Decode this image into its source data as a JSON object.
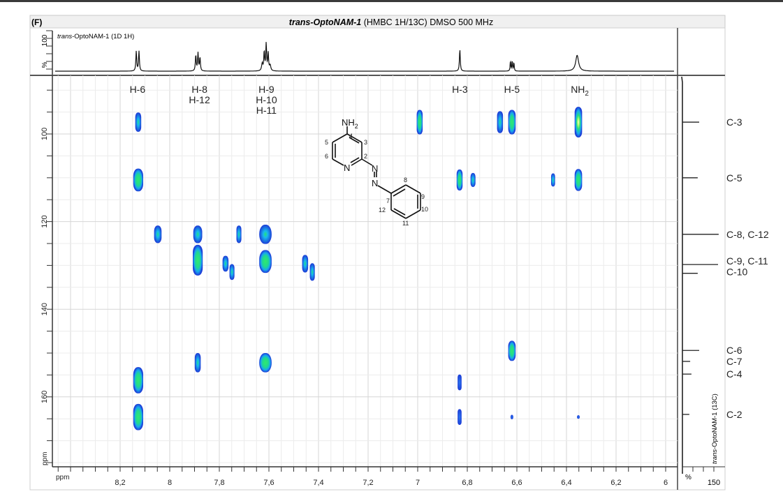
{
  "figure": {
    "panel_label": "(F)",
    "title_bold": "trans-OptoNAM-1",
    "title_rest": " (HMBC 1H/13C) DMSO 500 MHz",
    "proton_trace_label_italic": "trans",
    "proton_trace_label_rest": "-OptoNAM-1  (1D 1H)",
    "carbon_trace_label_italic": "trans",
    "carbon_trace_label_rest": "-OptoNAM-1  (13C)"
  },
  "colors": {
    "contour_low": "#1c3fd8",
    "contour_mid": "#18a8ee",
    "contour_high": "#26e07c",
    "contour_max": "#d8ff8a",
    "grid": "#e4e4e4",
    "axis": "#333333"
  },
  "chart_data": {
    "type": "heatmap",
    "subtype": "2D NMR HMBC contour plot",
    "xlabel": "ppm",
    "ylabel": "ppm",
    "xlim": [
      8.47,
      5.96
    ],
    "ylim": [
      87.3,
      175.8
    ],
    "x_ticks": [
      "8,2",
      "8",
      "7,8",
      "7,6",
      "7,4",
      "7,2",
      "7",
      "6,8",
      "6,6",
      "6,4",
      "6,2",
      "6"
    ],
    "x_tick_values": [
      8.2,
      8.0,
      7.8,
      7.6,
      7.4,
      7.2,
      7.0,
      6.8,
      6.6,
      6.4,
      6.2,
      6.0
    ],
    "y_ticks": [
      "100",
      "120",
      "140",
      "160"
    ],
    "y_tick_values": [
      100,
      120,
      140,
      160
    ],
    "grid": true,
    "proton_axis": {
      "top_label": "100",
      "unit_label": "%"
    },
    "carbon_axis": {
      "unit_label": "%",
      "tick_label": "150",
      "max": 150
    },
    "proton_labels": [
      {
        "lines": [
          "H-6"
        ],
        "ppm": 8.13
      },
      {
        "lines": [
          "H-8",
          "H-12"
        ],
        "ppm": 7.88
      },
      {
        "lines": [
          "H-9",
          "H-10",
          "H-11"
        ],
        "ppm": 7.61
      },
      {
        "lines": [
          "H-3"
        ],
        "ppm": 6.83
      },
      {
        "lines": [
          "H-5"
        ],
        "ppm": 6.62
      },
      {
        "lines": [
          "NH",
          "2"
        ],
        "ppm": 6.36,
        "subscript": true
      }
    ],
    "proton_spectrum": [
      [
        8.135,
        50,
        0.002
      ],
      [
        8.124,
        50,
        0.002
      ],
      [
        7.895,
        40,
        0.002
      ],
      [
        7.886,
        45,
        0.002
      ],
      [
        7.878,
        34,
        0.002
      ],
      [
        7.627,
        18,
        0.003
      ],
      [
        7.619,
        48,
        0.002
      ],
      [
        7.611,
        68,
        0.002
      ],
      [
        7.603,
        44,
        0.002
      ],
      [
        7.595,
        14,
        0.003
      ],
      [
        6.83,
        55,
        0.002
      ],
      [
        6.626,
        26,
        0.0015
      ],
      [
        6.619,
        26,
        0.0015
      ],
      [
        6.612,
        22,
        0.0015
      ],
      [
        6.357,
        40,
        0.007
      ]
    ],
    "carbon_labels": [
      {
        "label": "C-3",
        "ppm": 97.3,
        "intensity": 80
      },
      {
        "label": "C-5",
        "ppm": 110.0,
        "intensity": 73
      },
      {
        "label": "C-8, C-12",
        "ppm": 122.9,
        "intensity": 173
      },
      {
        "label": "C-9, C-11",
        "ppm": 129.8,
        "intensity": 170
      },
      {
        "label": "C-10",
        "ppm": 131.8,
        "intensity": 73
      },
      {
        "label": "C-6",
        "ppm": 149.4,
        "intensity": 80
      },
      {
        "label": "C-7",
        "ppm": 151.9,
        "intensity": 37
      },
      {
        "label": "C-4",
        "ppm": 154.8,
        "intensity": 43
      },
      {
        "label": "C-2",
        "ppm": 164.0,
        "intensity": 33
      }
    ],
    "cross_peaks_columns": [
      "h_ppm",
      "c_ppm",
      "h_halfwidth_ppm",
      "c_halfwidth_ppm",
      "contour_level"
    ],
    "cross_peaks": [
      [
        8.127,
        97.3,
        0.012,
        2.2,
        2
      ],
      [
        8.127,
        110.5,
        0.02,
        2.6,
        3
      ],
      [
        8.127,
        156.2,
        0.02,
        3.0,
        3
      ],
      [
        8.127,
        164.6,
        0.02,
        3.0,
        3
      ],
      [
        8.048,
        122.9,
        0.015,
        2.0,
        2
      ],
      [
        7.887,
        122.9,
        0.018,
        2.0,
        2
      ],
      [
        7.887,
        128.8,
        0.02,
        3.5,
        3
      ],
      [
        7.887,
        152.2,
        0.012,
        2.2,
        2
      ],
      [
        7.721,
        122.9,
        0.01,
        2.0,
        2
      ],
      [
        7.775,
        129.6,
        0.012,
        1.8,
        2
      ],
      [
        7.749,
        131.5,
        0.01,
        1.8,
        2
      ],
      [
        7.614,
        122.9,
        0.025,
        2.2,
        2
      ],
      [
        7.614,
        129.1,
        0.025,
        2.6,
        3
      ],
      [
        7.614,
        152.2,
        0.025,
        2.2,
        3
      ],
      [
        7.454,
        129.6,
        0.012,
        2.0,
        2
      ],
      [
        7.425,
        131.5,
        0.01,
        2.0,
        2
      ],
      [
        6.992,
        97.3,
        0.012,
        2.8,
        3
      ],
      [
        6.831,
        110.5,
        0.012,
        2.4,
        3
      ],
      [
        6.777,
        110.5,
        0.01,
        1.6,
        2
      ],
      [
        6.831,
        156.7,
        0.008,
        1.8,
        1
      ],
      [
        6.831,
        164.6,
        0.008,
        1.8,
        1
      ],
      [
        6.668,
        97.3,
        0.012,
        2.5,
        2
      ],
      [
        6.62,
        97.3,
        0.015,
        2.8,
        3
      ],
      [
        6.62,
        149.5,
        0.015,
        2.3,
        3
      ],
      [
        6.62,
        164.6,
        0.004,
        0.5,
        1
      ],
      [
        6.454,
        110.5,
        0.008,
        1.5,
        2
      ],
      [
        6.352,
        97.3,
        0.015,
        3.5,
        4
      ],
      [
        6.352,
        110.5,
        0.015,
        2.5,
        3
      ],
      [
        6.352,
        164.6,
        0.004,
        0.4,
        1
      ]
    ]
  },
  "structure": {
    "nh2": "NH",
    "nh2_sub": "2",
    "n_ring": "N",
    "n_azo1": "N",
    "n_azo2": "N",
    "atom_numbers": [
      "4",
      "3",
      "5",
      "6",
      "2",
      "8",
      "9",
      "10",
      "7",
      "12",
      "11"
    ]
  }
}
